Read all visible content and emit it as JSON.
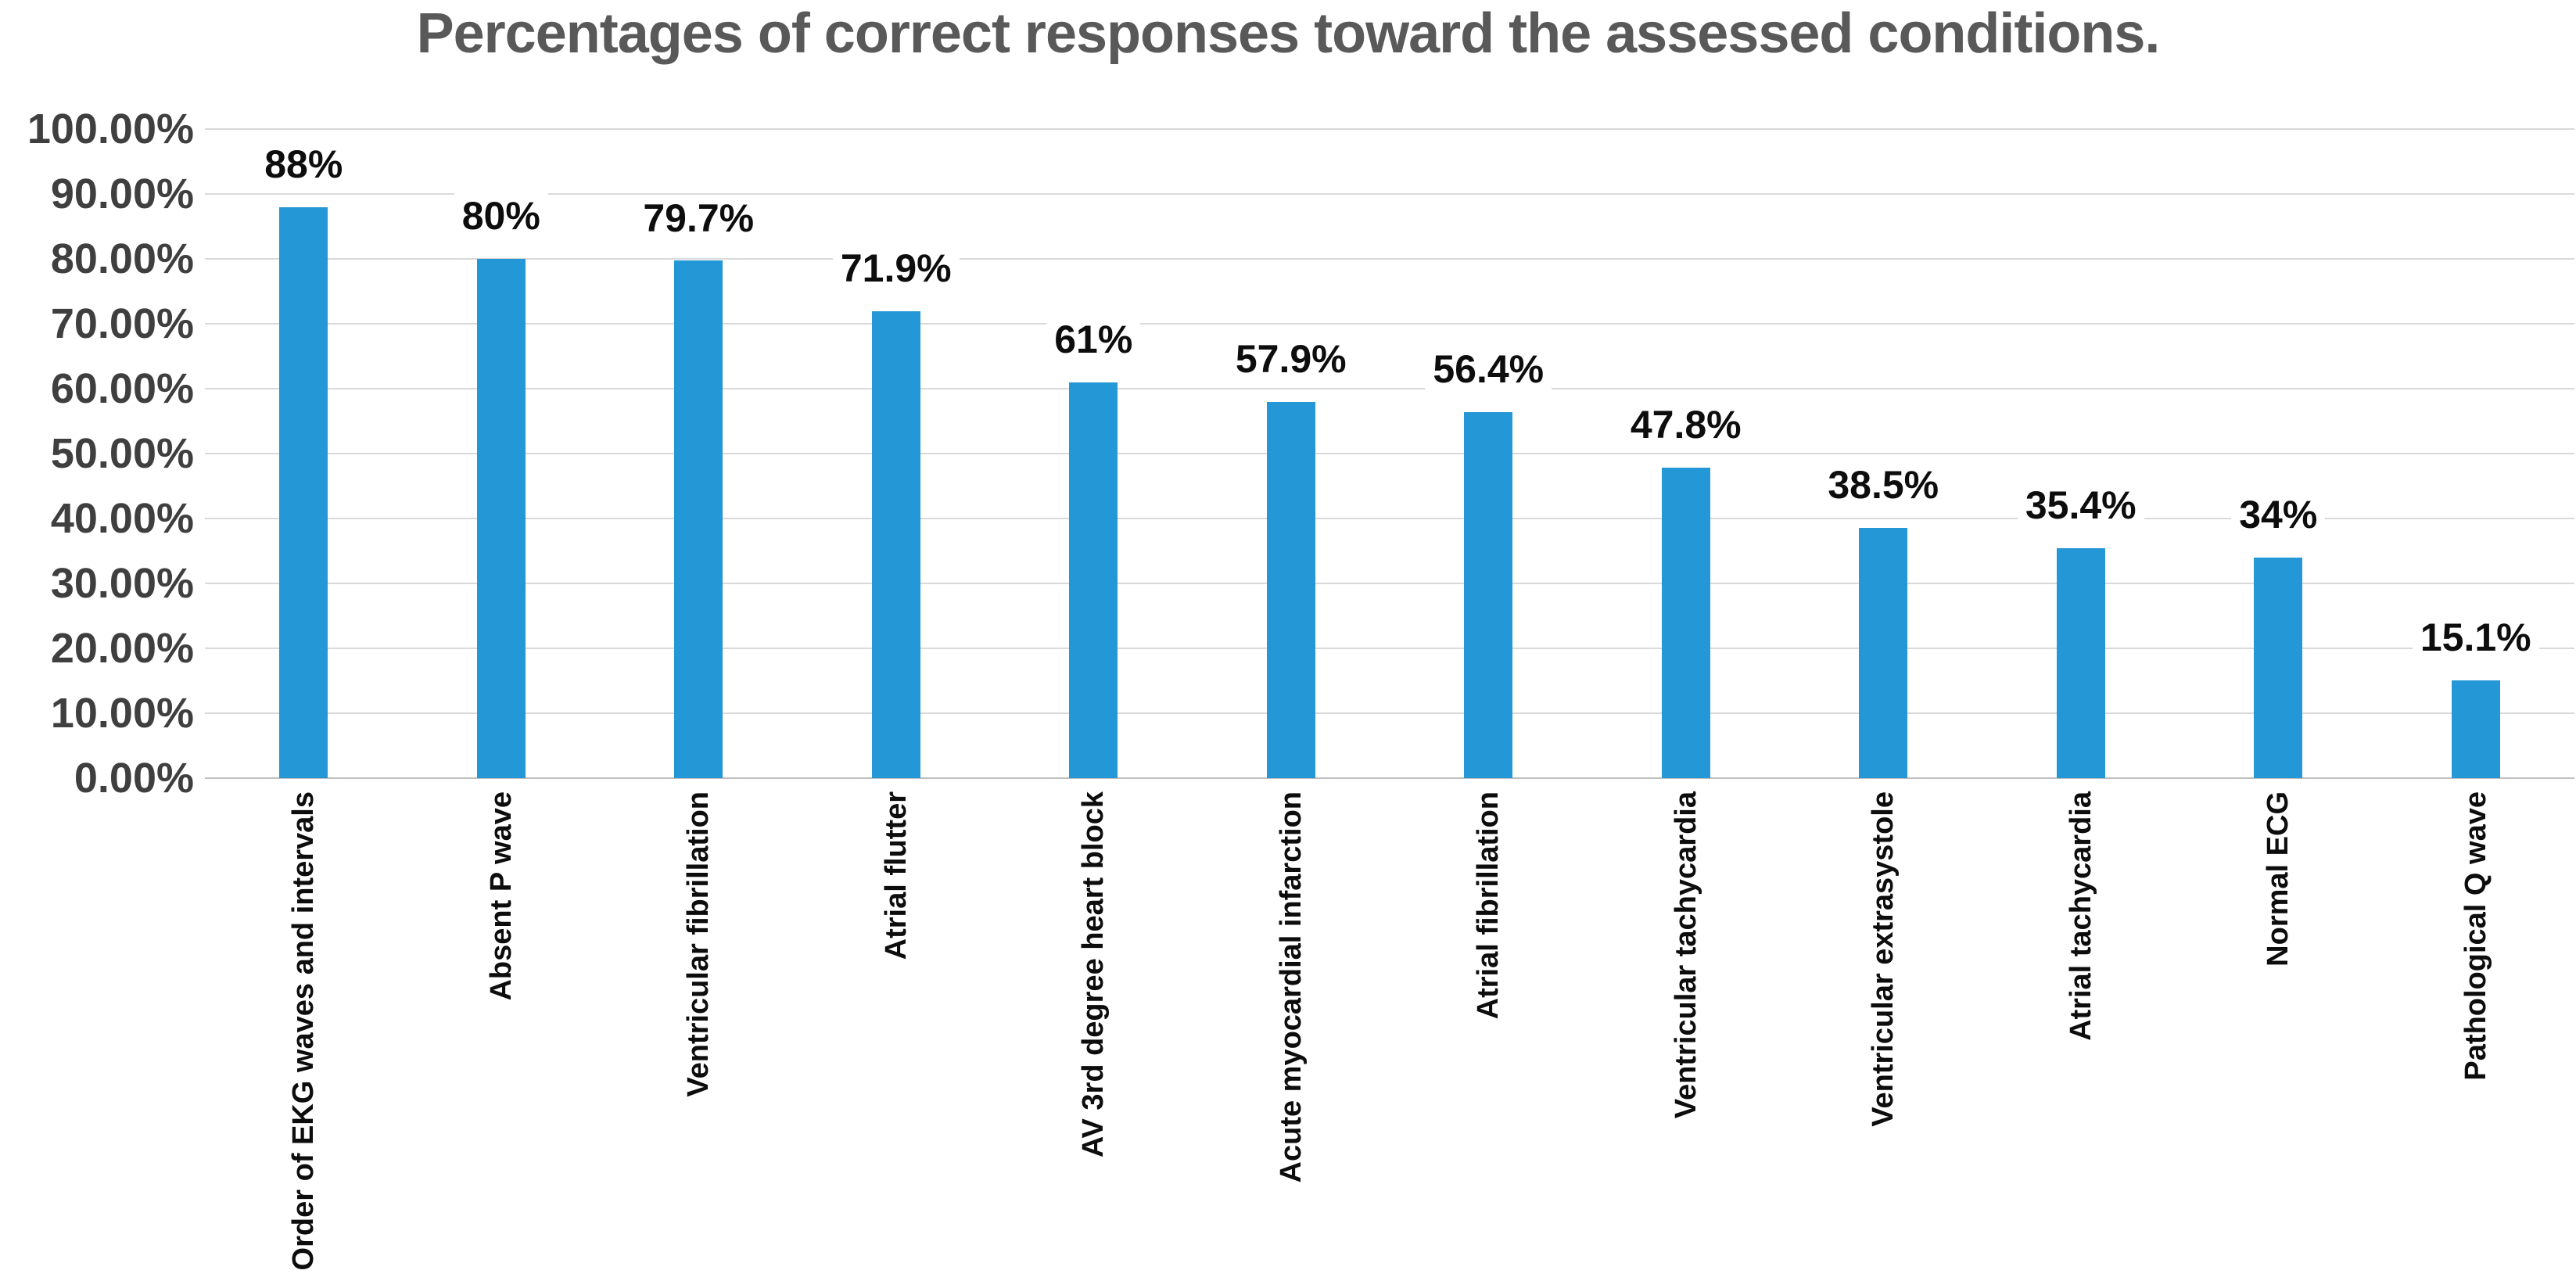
{
  "page": {
    "background": "#FFFFFF"
  },
  "colors": {
    "bar": "#2497D6",
    "gridline": "#D9D9D9",
    "axis_line": "#BFBFBF",
    "title_text": "#595959",
    "y_tick_text": "#3F3F3F",
    "data_label_text": "#0D0D0D",
    "category_label_text": "#0D0D0D",
    "background": "#FFFFFF"
  },
  "chart_data": {
    "type": "bar",
    "title": "Percentages of correct responses toward the assessed conditions.",
    "xlabel": "",
    "ylabel": "",
    "categories": [
      "Order of EKG waves and intervals",
      "Absent P wave",
      "Ventricular fibrillation",
      "Atrial flutter",
      "AV 3rd degree heart block",
      "Acute myocardial infarction",
      "Atrial fibrillation",
      "Ventricular tachycardia",
      "Ventricular extrasystole",
      "Atrial tachycardia",
      "Normal ECG",
      "Pathological Q wave"
    ],
    "values": [
      88,
      80,
      79.7,
      71.9,
      61,
      57.9,
      56.4,
      47.8,
      38.5,
      35.4,
      34,
      15.1
    ],
    "value_labels": [
      "88%",
      "80%",
      "79.7%",
      "71.9%",
      "61%",
      "57.9%",
      "56.4%",
      "47.8%",
      "38.5%",
      "35.4%",
      "34%",
      "15.1%"
    ],
    "y_ticks": [
      "0.00%",
      "10.00%",
      "20.00%",
      "30.00%",
      "40.00%",
      "50.00%",
      "60.00%",
      "70.00%",
      "80.00%",
      "90.00%",
      "100.00%"
    ],
    "ylim": [
      0,
      100
    ],
    "y_tick_step": 10,
    "grid": true,
    "legend": "none",
    "bar_color": "#2497D6",
    "data_label_position": "above-bar",
    "category_label_rotation": "vertical-bottom-to-top"
  }
}
